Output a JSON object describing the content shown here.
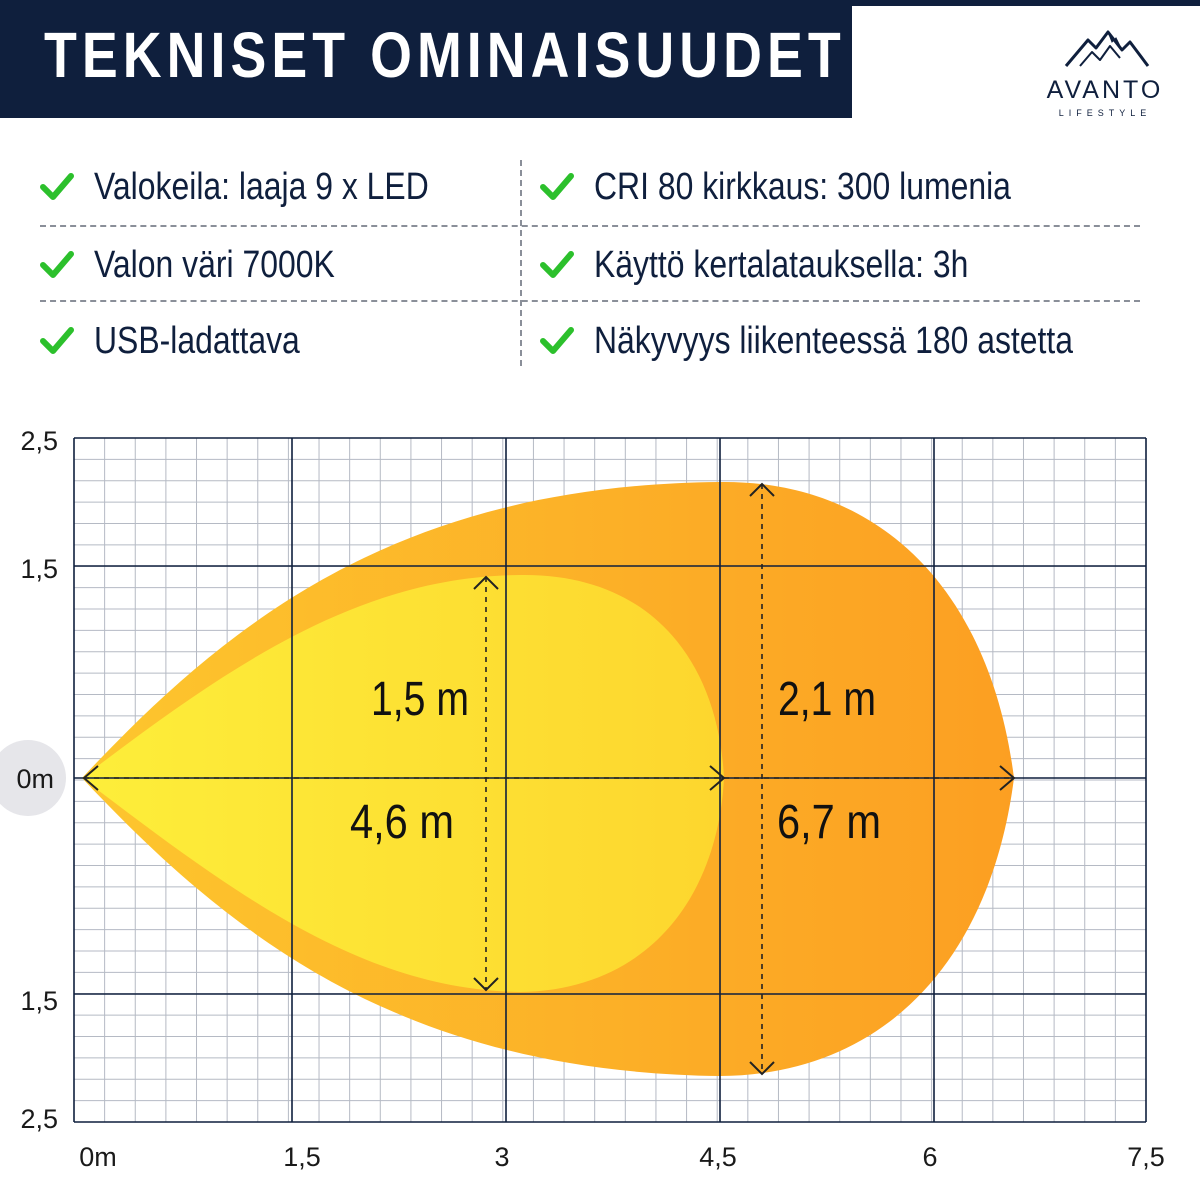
{
  "header": {
    "title": "TEKNISET OMINAISUUDET",
    "logo_name": "AVANTO",
    "logo_sub": "LIFESTYLE"
  },
  "features": [
    {
      "label": "Valokeila: laaja 9 x LED"
    },
    {
      "label": "CRI 80 kirkkaus: 300 lumenia"
    },
    {
      "label": "Valon väri 7000K"
    },
    {
      "label": "Käyttö kertalatauksella: 3h"
    },
    {
      "label": "USB-ladattava"
    },
    {
      "label": "Näkyvyys liikenteessä 180 astetta"
    }
  ],
  "colors": {
    "navy": "#0f1f3d",
    "check_green": "#2cc02c",
    "inner_beam": "#fde733",
    "outer_beam": "#fca324",
    "grid": "#aab0bb"
  },
  "chart_data": {
    "type": "area",
    "x_ticks": [
      "0m",
      "1,5",
      "3",
      "4,5",
      "6",
      "7,5"
    ],
    "y_ticks": [
      "2,5",
      "1,5",
      "0m",
      "1,5",
      "2,5"
    ],
    "xlim": [
      0,
      7.5
    ],
    "ylim": [
      -2.5,
      2.5
    ],
    "grid": true,
    "beams": [
      {
        "length_label": "4,6 m",
        "width_label": "1,5 m",
        "length": 4.6,
        "width": 1.5
      },
      {
        "length_label": "6,7 m",
        "width_label": "2,1 m",
        "length": 6.7,
        "width": 2.1
      }
    ]
  }
}
